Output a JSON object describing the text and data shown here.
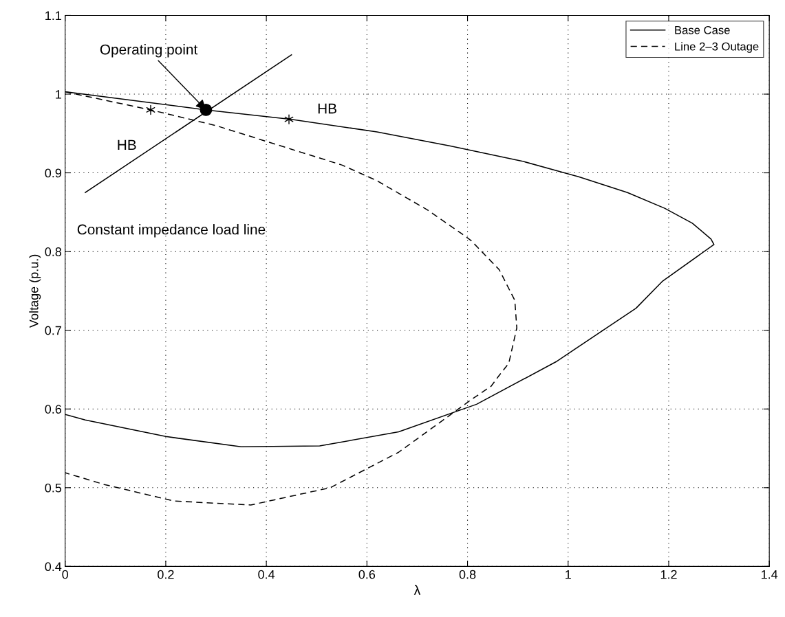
{
  "chart_data": {
    "type": "line",
    "xlabel": "λ",
    "ylabel": "Voltage (p.u.)",
    "xlim": [
      0,
      1.4
    ],
    "ylim": [
      0.4,
      1.1
    ],
    "xticks": [
      0,
      0.2,
      0.4,
      0.6,
      0.8,
      1,
      1.2,
      1.4
    ],
    "yticks": [
      0.4,
      0.5,
      0.6,
      0.7,
      0.8,
      0.9,
      1,
      1.1
    ],
    "grid": true,
    "legend": "top right",
    "series": [
      {
        "name": "Base Case",
        "color": "#000000",
        "line_style": "solid",
        "marker": "none",
        "x": [
          0,
          0.28,
          0.45,
          0.62,
          0.766,
          0.908,
          1.021,
          1.118,
          1.192,
          1.247,
          1.284,
          1.29,
          1.187,
          1.135,
          0.976,
          0.818,
          0.663,
          0.506,
          0.35,
          0.2,
          0.04,
          0
        ],
        "values": [
          1.003,
          0.98,
          0.968,
          0.952,
          0.934,
          0.915,
          0.895,
          0.875,
          0.855,
          0.836,
          0.816,
          0.809,
          0.762,
          0.728,
          0.66,
          0.606,
          0.571,
          0.553,
          0.552,
          0.565,
          0.586,
          0.593
        ]
      },
      {
        "name": "Line 2–3 Outage",
        "color": "#000000",
        "line_style": "dashed",
        "marker": "none",
        "x": [
          0,
          0.17,
          0.3,
          0.45,
          0.55,
          0.62,
          0.72,
          0.79,
          0.807,
          0.863,
          0.894,
          0.898,
          0.882,
          0.861,
          0.847,
          0.81,
          0.663,
          0.527,
          0.369,
          0.217,
          0.078,
          0
        ],
        "values": [
          1.003,
          0.98,
          0.96,
          0.93,
          0.91,
          0.89,
          0.853,
          0.822,
          0.814,
          0.777,
          0.738,
          0.703,
          0.658,
          0.641,
          0.629,
          0.613,
          0.545,
          0.5,
          0.478,
          0.483,
          0.504,
          0.519
        ]
      },
      {
        "type": "line",
        "color": "#000000",
        "line_style": "solid",
        "marker": "none",
        "x": [
          0.04,
          0.45
        ],
        "values": [
          0.875,
          1.05
        ]
      },
      {
        "type": "scatter",
        "color": "#000000",
        "marker": "cross",
        "x": [
          0.17,
          0.445
        ],
        "values": [
          0.98,
          0.968
        ]
      },
      {
        "type": "scatter",
        "color": "#000000",
        "marker": "circle",
        "x": [
          0.28
        ],
        "values": [
          0.98
        ]
      }
    ],
    "annotations": [
      {
        "text": "Operating point",
        "x": 0.28,
        "y": 0.98
      },
      {
        "text": "HB",
        "x": 0.17,
        "y": 0.98
      },
      {
        "text": "HB",
        "x": 0.445,
        "y": 0.968
      },
      {
        "text": "Constant impedance load line",
        "x": 0.04,
        "y": 0.875
      }
    ]
  }
}
